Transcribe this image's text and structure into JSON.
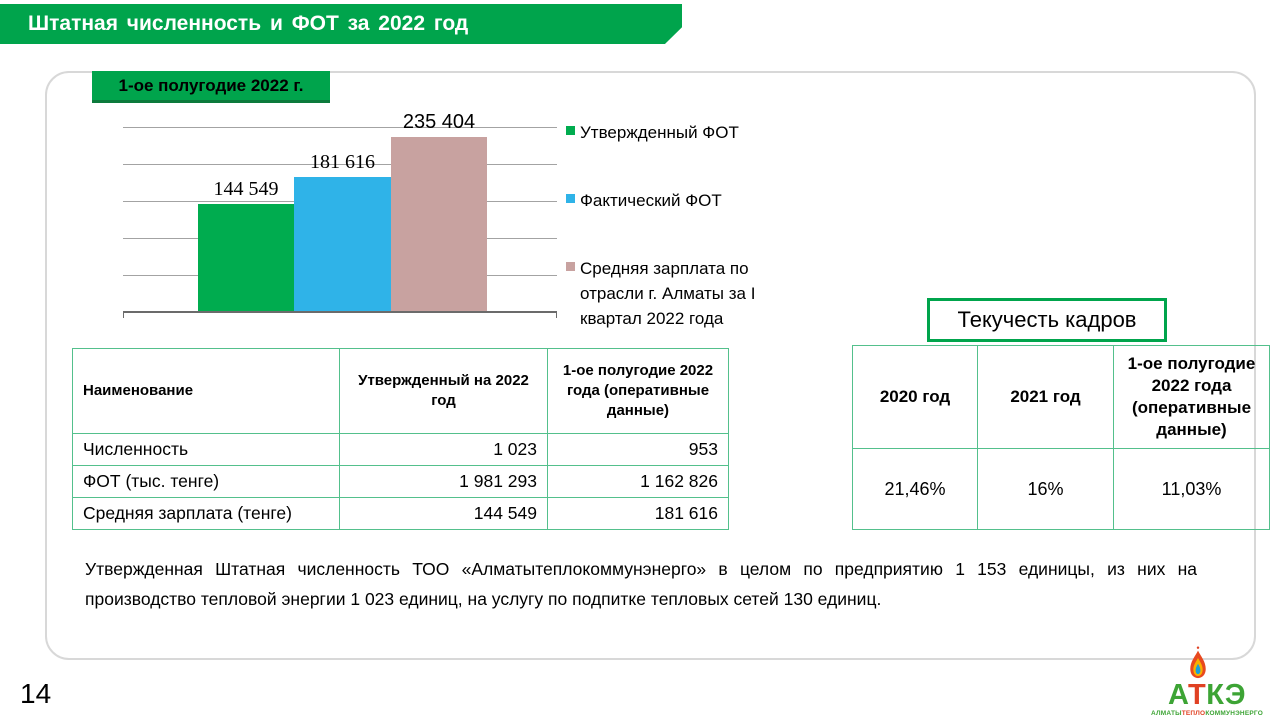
{
  "header": {
    "title": "Штатная численность и ФОТ за 2022 год"
  },
  "period_label": "1-ое полугодие 2022 г.",
  "chart_data": {
    "type": "bar",
    "title": "",
    "categories": [
      "Утвержденный ФОТ",
      "Фактический ФОТ",
      "Средняя зарплата по отрасли г. Алматы за I квартал 2022 года"
    ],
    "values": [
      144549,
      181616,
      235404
    ],
    "value_labels": [
      "144 549",
      "181 616",
      "235 404"
    ],
    "colors": [
      "#00AC4F",
      "#2FB3E8",
      "#C8A2A0"
    ],
    "ylim": [
      0,
      250000
    ],
    "gridline_step": 50000,
    "grid": true,
    "legend_position": "right",
    "legend": [
      {
        "label": "Утвержденный ФОТ",
        "color": "#00AC4F"
      },
      {
        "label": "Фактический ФОТ",
        "color": "#2FB3E8"
      },
      {
        "label": "Средняя зарплата по отрасли  г. Алматы за I квартал 2022 года",
        "color": "#C8A2A0"
      }
    ]
  },
  "staff_table": {
    "columns": [
      "Наименование",
      "Утвержденный на 2022 год",
      "1-ое полугодие 2022 года (оперативные данные)"
    ],
    "rows": [
      [
        "Численность",
        "1 023",
        "953"
      ],
      [
        "ФОТ (тыс. тенге)",
        "1 981 293",
        "1 162 826"
      ],
      [
        "Средняя зарплата (тенге)",
        "144 549",
        "181 616"
      ]
    ]
  },
  "turnover": {
    "title": "Текучесть кадров",
    "columns": [
      "2020 год",
      "2021 год",
      "1-ое полугодие 2022 года (оперативные данные)"
    ],
    "values": [
      "21,46%",
      "16%",
      "11,03%"
    ]
  },
  "note": {
    "line1": "Утвержденная Штатная численность ТОО «Алматытеплокоммунэнерго» в целом по предприятию 1 153 единицы, из них на",
    "line2": "производство тепловой энергии 1 023 единиц, на услугу по подпитке тепловых сетей 130 единиц."
  },
  "page_number": "14",
  "logo": {
    "letters": [
      {
        "t": "А",
        "c": "#3DA435"
      },
      {
        "t": "Т",
        "c": "#E04123"
      },
      {
        "t": "К",
        "c": "#3DA435"
      },
      {
        "t": "Э",
        "c": "#3DA435"
      }
    ],
    "subtitle": [
      {
        "t": "АЛМАТЫ",
        "c": "#3DA435"
      },
      {
        "t": "ТЕПЛО",
        "c": "#E04123"
      },
      {
        "t": "КОММУНЭНЕРГО",
        "c": "#3DA435"
      }
    ]
  },
  "colors": {
    "accent_green": "#00A44C",
    "accent_green_dark": "#0C7A3C",
    "table_border_green": "#53C08C",
    "card_border": "#D8D8D8",
    "gridline": "#A3A3A3",
    "axis": "#6B6B6B"
  }
}
